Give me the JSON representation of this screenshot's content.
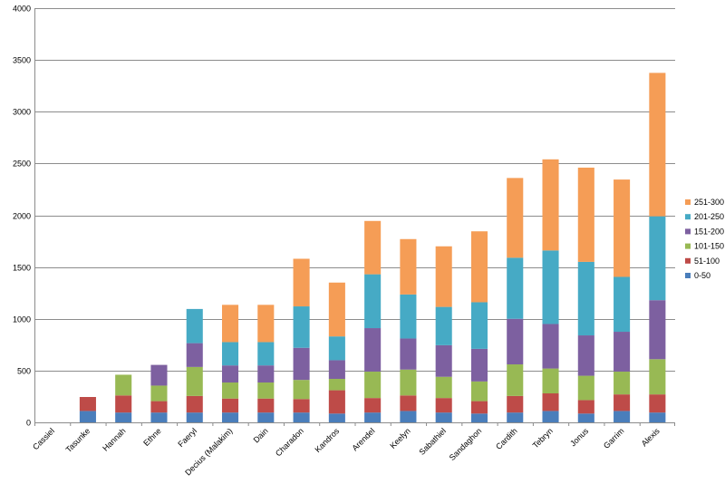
{
  "chart_data": {
    "type": "bar",
    "stacked": true,
    "title": "",
    "xlabel": "",
    "ylabel": "",
    "ylim": [
      0,
      4000
    ],
    "yticks": [
      0,
      500,
      1000,
      1500,
      2000,
      2500,
      3000,
      3500,
      4000
    ],
    "grid": true,
    "legend_position": "right",
    "categories": [
      "Cassiel",
      "Tasunke",
      "Hannah",
      "Ethne",
      "Faeryl",
      "Decius (Malakim)",
      "Dain",
      "Charadon",
      "Kandros",
      "Arendel",
      "Keelyn",
      "Sabathiel",
      "Sandaghon",
      "Cardith",
      "Tebryn",
      "Jonus",
      "Garrim",
      "Alexis"
    ],
    "series": [
      {
        "name": "0-50",
        "color": "#4a7ebb",
        "values": [
          0,
          110,
          95,
          95,
          95,
          95,
          95,
          95,
          85,
          95,
          110,
          95,
          85,
          95,
          110,
          85,
          110,
          95
        ]
      },
      {
        "name": "51-100",
        "color": "#be4b48",
        "values": [
          0,
          135,
          165,
          110,
          160,
          135,
          135,
          130,
          225,
          140,
          150,
          140,
          120,
          160,
          170,
          130,
          160,
          175
        ]
      },
      {
        "name": "101-150",
        "color": "#98b954",
        "values": [
          0,
          0,
          200,
          150,
          280,
          155,
          155,
          185,
          110,
          255,
          250,
          205,
          190,
          305,
          240,
          235,
          220,
          340
        ]
      },
      {
        "name": "151-200",
        "color": "#7d60a0",
        "values": [
          0,
          0,
          0,
          200,
          230,
          165,
          165,
          310,
          180,
          420,
          300,
          305,
          315,
          440,
          430,
          390,
          385,
          570
        ]
      },
      {
        "name": "201-250",
        "color": "#46aac5",
        "values": [
          0,
          0,
          0,
          0,
          330,
          225,
          225,
          400,
          230,
          520,
          425,
          370,
          450,
          590,
          710,
          710,
          530,
          810
        ]
      },
      {
        "name": "251-300",
        "color": "#f59d56",
        "values": [
          0,
          0,
          0,
          0,
          0,
          360,
          360,
          460,
          520,
          515,
          535,
          585,
          685,
          770,
          880,
          910,
          940,
          1385
        ]
      }
    ]
  }
}
